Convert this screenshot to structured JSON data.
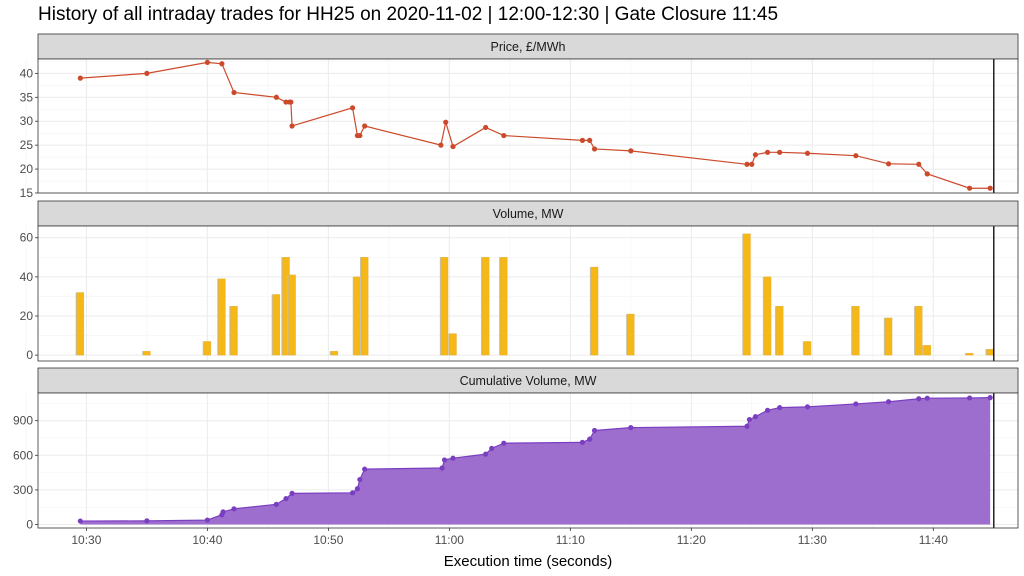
{
  "title": "History of all intraday trades for HH25 on 2020-11-02 | 12:00-12:30 | Gate Closure 11:45",
  "xlabel": "Execution time (seconds)",
  "colors": {
    "price": "#cc4a2b",
    "volume_fill": "#f5b817",
    "volume_side": "#c9c2a8",
    "cumulative": "#9966cc",
    "cumulative_point": "#7a3fc0",
    "strip_bg": "#d9d9d9",
    "grid": "#ebebeb",
    "gate_line": "#000000"
  },
  "chart_data": [
    {
      "type": "line",
      "title": "Price, £/MWh",
      "ylim": [
        15,
        43
      ],
      "yticks": [
        15,
        20,
        25,
        30,
        35,
        40
      ],
      "xlim": [
        "10:26",
        "11:47"
      ],
      "xticks": [
        "10:30",
        "10:40",
        "10:50",
        "11:00",
        "11:10",
        "11:20",
        "11:30",
        "11:40"
      ],
      "gate_closure": "11:45",
      "x": [
        "10:29.5",
        "10:35",
        "10:40",
        "10:41.2",
        "10:42.2",
        "10:45.7",
        "10:46.5",
        "10:46.8",
        "10:46.9",
        "10:47",
        "10:52",
        "10:52.4",
        "10:52.6",
        "10:53",
        "10:59.3",
        "10:59.7",
        "11:00.3",
        "11:03",
        "11:04.5",
        "11:11",
        "11:11.6",
        "11:12",
        "11:15",
        "11:24.6",
        "11:25",
        "11:25.3",
        "11:26.3",
        "11:27.3",
        "11:29.6",
        "11:33.6",
        "11:36.3",
        "11:38.8",
        "11:39.5",
        "11:43",
        "11:44.7"
      ],
      "y": [
        39,
        40,
        42.3,
        42,
        36,
        35,
        34,
        34,
        34,
        29,
        32.8,
        27,
        27,
        29,
        25,
        29.8,
        24.7,
        28.7,
        27,
        26,
        26,
        24.2,
        23.8,
        21,
        21,
        23,
        23.5,
        23.5,
        23.3,
        22.8,
        21.1,
        21,
        19,
        16,
        16
      ]
    },
    {
      "type": "bar",
      "title": "Volume, MW",
      "ylim": [
        -3,
        66
      ],
      "yticks": [
        0,
        20,
        40,
        60
      ],
      "x": [
        "10:29.5",
        "10:35",
        "10:40",
        "10:41.2",
        "10:42.2",
        "10:45.7",
        "10:46.5",
        "10:47",
        "10:50.5",
        "10:52.4",
        "10:53",
        "10:59.6",
        "11:00.3",
        "11:03",
        "11:04.5",
        "11:12",
        "11:15",
        "11:24.6",
        "11:26.3",
        "11:27.3",
        "11:29.6",
        "11:33.6",
        "11:36.3",
        "11:38.8",
        "11:39.5",
        "11:43",
        "11:44.7"
      ],
      "values": [
        32,
        2,
        7,
        39,
        25,
        31,
        50,
        41,
        2,
        40,
        50,
        50,
        11,
        50,
        50,
        45,
        21,
        62,
        40,
        25,
        7,
        25,
        19,
        25,
        5,
        1,
        3
      ]
    },
    {
      "type": "area",
      "title": "Cumulative Volume, MW",
      "ylim": [
        -30,
        1140
      ],
      "yticks": [
        0,
        300,
        600,
        900
      ],
      "x": [
        "10:29.5",
        "10:35",
        "10:40",
        "10:41.2",
        "10:41.3",
        "10:42.2",
        "10:45.7",
        "10:46.5",
        "10:47",
        "10:52",
        "10:52.4",
        "10:52.6",
        "10:53",
        "10:59.4",
        "10:59.6",
        "11:00.3",
        "11:03",
        "11:03.5",
        "11:04.5",
        "11:11",
        "11:11.6",
        "11:12",
        "11:15",
        "11:24.6",
        "11:24.8",
        "11:25.3",
        "11:26.3",
        "11:27.3",
        "11:29.6",
        "11:33.6",
        "11:36.3",
        "11:38.8",
        "11:39.5",
        "11:43",
        "11:44.7"
      ],
      "y": [
        30,
        32,
        39,
        85,
        110,
        136,
        175,
        225,
        270,
        275,
        310,
        390,
        480,
        490,
        560,
        575,
        610,
        660,
        705,
        712,
        740,
        815,
        840,
        852,
        910,
        935,
        990,
        1013,
        1020,
        1045,
        1064,
        1090,
        1095,
        1097,
        1100
      ]
    }
  ]
}
